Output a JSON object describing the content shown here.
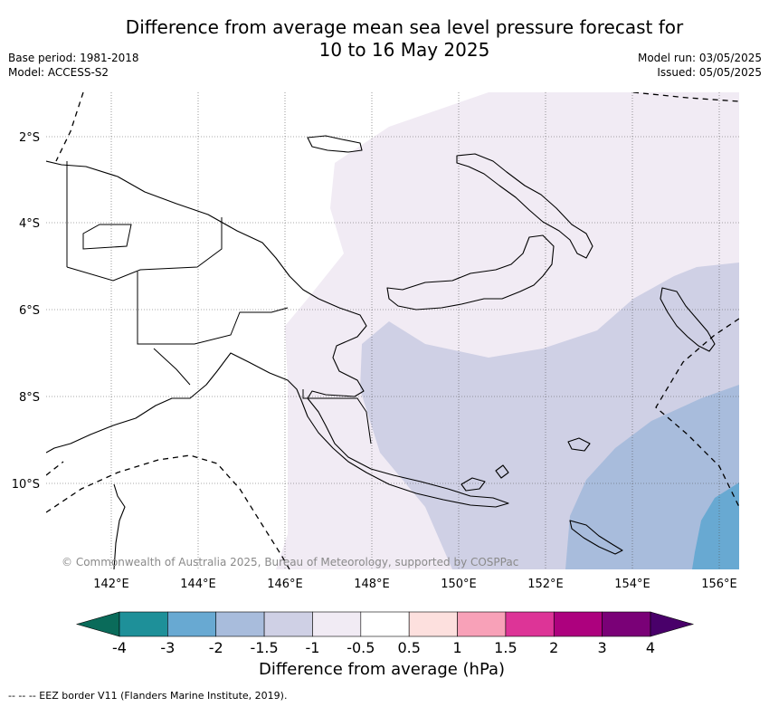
{
  "header": {
    "title_line1": "Difference from average mean sea level pressure forecast for",
    "title_line2": "10 to 16 May 2025",
    "base_period": "Base period: 1981-2018",
    "model": "Model: ACCESS-S2",
    "model_run": "Model run: 03/05/2025",
    "issued": "Issued: 05/05/2025"
  },
  "map": {
    "lon_labels": [
      "142°E",
      "144°E",
      "146°E",
      "148°E",
      "150°E",
      "152°E",
      "154°E",
      "156°E"
    ],
    "lat_labels": [
      "2°S",
      "4°S",
      "6°S",
      "8°S",
      "10°S"
    ],
    "copyright": "© Commonwealth of Australia 2025, Bureau of Meteorology, supported by COSPPac",
    "gridlines": true
  },
  "legend": {
    "title": "Difference from average (hPa)",
    "tick_labels": [
      "-4",
      "-3",
      "-2",
      "-1.5",
      "-1",
      "-0.5",
      "0.5",
      "1",
      "1.5",
      "2",
      "3",
      "4"
    ],
    "colors": {
      "lt_-4": "#0a6b5a",
      "-4_-3": "#1e9099",
      "-3_-2": "#68a9d2",
      "-2_-1.5": "#a8bcdc",
      "-1.5_-1": "#cfd0e5",
      "-1_-0.5": "#f1ebf4",
      "-0.5_0.5": "#ffffff",
      "0.5_1": "#fde0de",
      "1_1.5": "#f8a1b8",
      "1.5_2": "#dd3497",
      "2_3": "#ad017e",
      "3_4": "#7a0177",
      "gt_4": "#49006a"
    }
  },
  "footer": {
    "eez_note": "--  --  -- EEZ border V11 (Flanders Marine Institute, 2019)."
  }
}
